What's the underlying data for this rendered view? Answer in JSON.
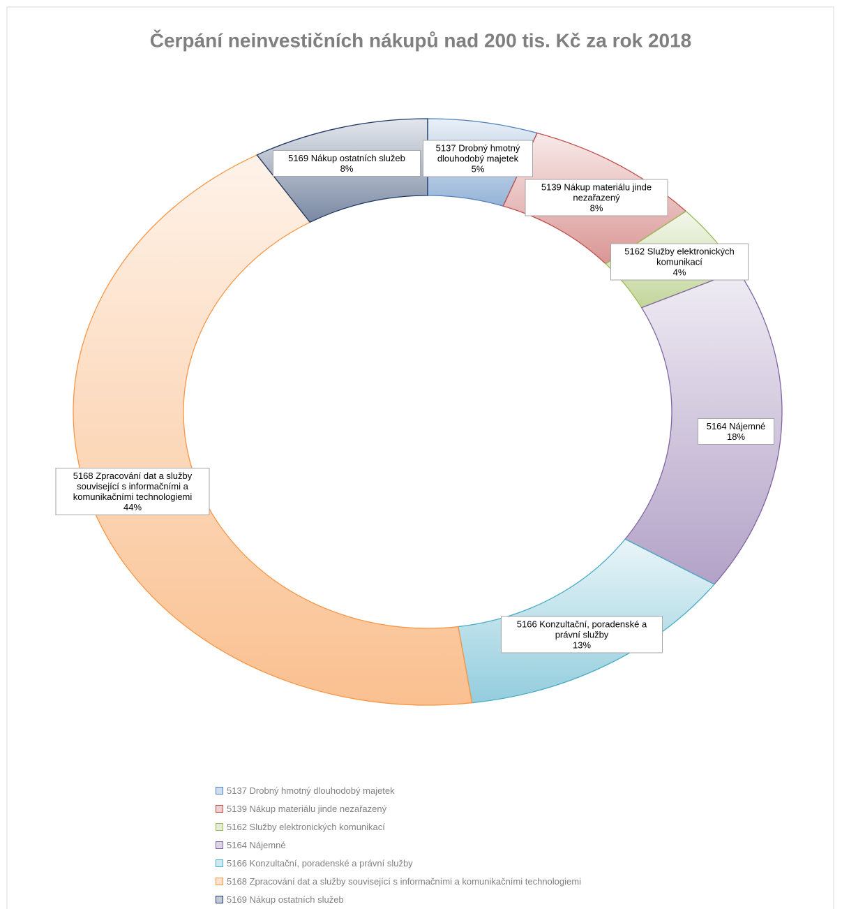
{
  "chart_data": {
    "type": "donut",
    "title": "Čerpání neinvestičních nákupů nad 200 tis. Kč  za rok  2018",
    "categories": [
      "5137 Drobný hmotný dlouhodobý majetek",
      "5139 Nákup materiálu jinde nezařazený",
      "5162 Služby elektronických komunikací",
      "5164 Nájemné",
      "5166 Konzultační, poradenské a právní služby",
      "5168 Zpracování dat a služby související s informačními a komunikačními technologiemi",
      "5169 Nákup ostatních služeb"
    ],
    "values": [
      5,
      8,
      4,
      18,
      13,
      44,
      8
    ],
    "value_labels": [
      "5%",
      "8%",
      "4%",
      "18%",
      "13%",
      "44%",
      "8%"
    ],
    "colors": [
      "#4f81bd",
      "#c0504d",
      "#9bbb59",
      "#8064a2",
      "#4bacc6",
      "#f79646",
      "#1f3864"
    ],
    "legend": "bottom"
  }
}
